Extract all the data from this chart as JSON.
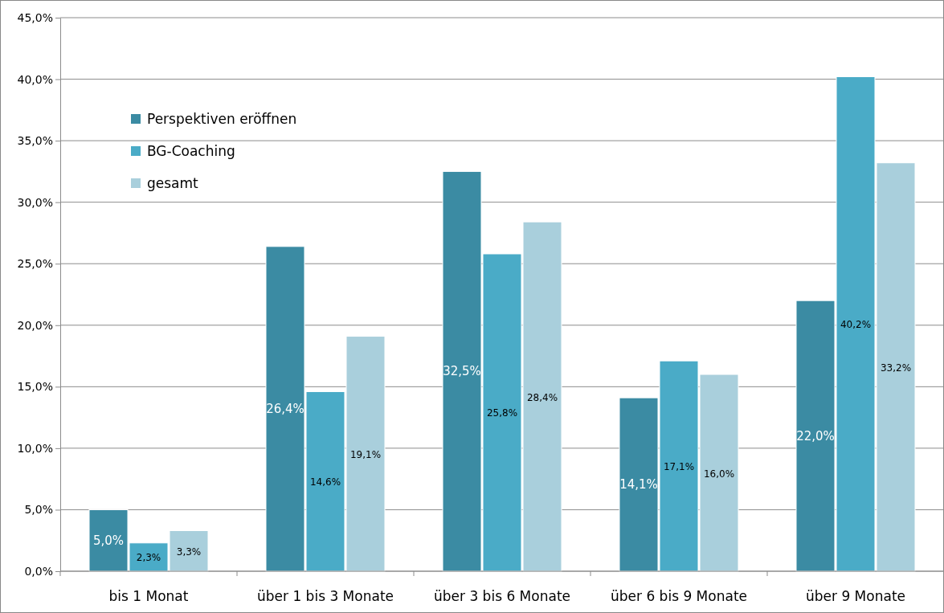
{
  "chart_data": {
    "type": "bar",
    "categories": [
      "bis 1 Monat",
      "über 1 bis 3 Monate",
      "über 3 bis 6 Monate",
      "über 6 bis 9 Monate",
      "über 9 Monate"
    ],
    "series": [
      {
        "name": "Perspektiven eröffnen",
        "color": "#3b8ba3",
        "values": [
          5.0,
          26.4,
          32.5,
          14.1,
          22.0
        ],
        "value_labels": [
          "5,0%",
          "26,4%",
          "32,5%",
          "14,1%",
          "22,0%"
        ]
      },
      {
        "name": "BG-Coaching",
        "color": "#4aabc7",
        "values": [
          2.3,
          14.6,
          25.8,
          17.1,
          40.2
        ],
        "value_labels": [
          "2,3%",
          "14,6%",
          "25,8%",
          "17,1%",
          "40,2%"
        ]
      },
      {
        "name": "gesamt",
        "color": "#a9cfdc",
        "values": [
          3.3,
          19.1,
          28.4,
          16.0,
          33.2
        ],
        "value_labels": [
          "3,3%",
          "19,1%",
          "28,4%",
          "16,0%",
          "33,2%"
        ]
      }
    ],
    "ylim": [
      0,
      45
    ],
    "yticks": [
      {
        "value": 0,
        "label": "0,0%"
      },
      {
        "value": 5,
        "label": "5,0%"
      },
      {
        "value": 10,
        "label": "10,0%"
      },
      {
        "value": 15,
        "label": "15,0%"
      },
      {
        "value": 20,
        "label": "20,0%"
      },
      {
        "value": 25,
        "label": "25,0%"
      },
      {
        "value": 30,
        "label": "30,0%"
      },
      {
        "value": 35,
        "label": "35,0%"
      },
      {
        "value": 40,
        "label": "40,0%"
      },
      {
        "value": 45,
        "label": "45,0%"
      }
    ],
    "grid": "y",
    "legend": "top left"
  }
}
